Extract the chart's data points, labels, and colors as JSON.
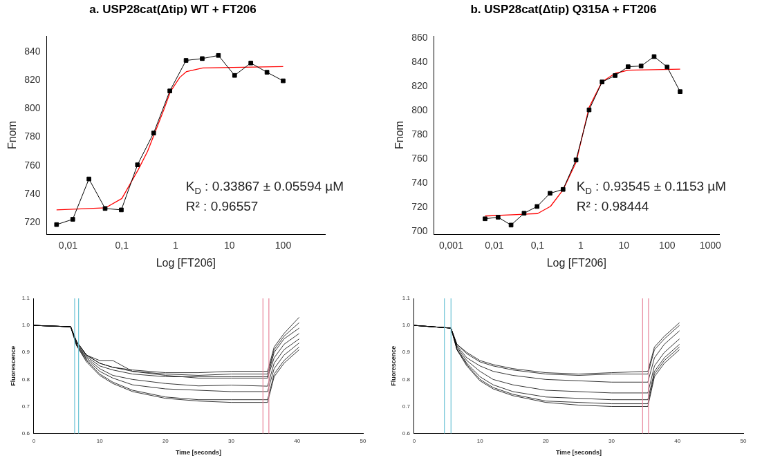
{
  "chart_data": [
    {
      "type": "line",
      "title": "a. USP28cat(Δtip) WT + FT206",
      "xlabel": "Log [FT206]",
      "ylabel": "Fnom",
      "log": "x",
      "marker": "square",
      "line_style": "solid",
      "legend": false,
      "grid": false,
      "xlim": [
        0.004,
        600
      ],
      "xticks": [
        {
          "value": 0.01,
          "label": "0,01"
        },
        {
          "value": 0.1,
          "label": "0,1"
        },
        1,
        10,
        100
      ],
      "ylim": [
        712,
        851
      ],
      "yticks": [
        720,
        740,
        760,
        780,
        800,
        820,
        840
      ],
      "annotations": [
        "K$_{D}$ : 0.33867 ± 0.05594 µM",
        "R² : 0.96557"
      ],
      "series": [
        {
          "color": "#000000",
          "x": [
            0.0061,
            0.0122,
            0.0244,
            0.0488,
            0.0977,
            0.195,
            0.39,
            0.78,
            1.5625,
            3.125,
            6.25,
            12.5,
            25,
            50,
            100
          ],
          "values": [
            718.7,
            722.4,
            750.7,
            730,
            729,
            760.6,
            782.9,
            812.4,
            833.8,
            835.1,
            837.3,
            823.3,
            832,
            825.5,
            819.5
          ]
        },
        {
          "color": "#ff0000",
          "marker": "none",
          "x": [
            0.0061,
            0.05,
            0.1,
            0.2,
            0.3,
            0.4,
            0.6,
            0.8,
            1.2,
            1.6,
            3.2,
            100
          ],
          "values": [
            729,
            730.5,
            737,
            757,
            770,
            782,
            799,
            812,
            822,
            826,
            828.5,
            829.5
          ]
        }
      ]
    },
    {
      "type": "line",
      "title": "b. USP28cat(Δtip) Q315A + FT206",
      "xlabel": "Log [FT206]",
      "ylabel": "Fnom",
      "log": "x",
      "marker": "square",
      "line_style": "solid",
      "legend": false,
      "grid": false,
      "xlim": [
        0.0004,
        1600
      ],
      "xticks": [
        {
          "value": 0.001,
          "label": "0,001"
        },
        {
          "value": 0.01,
          "label": "0,01"
        },
        {
          "value": 0.1,
          "label": "0,1"
        },
        1,
        10,
        100,
        1000
      ],
      "ylim": [
        698,
        862
      ],
      "yticks": [
        700,
        720,
        740,
        760,
        780,
        800,
        820,
        840,
        860
      ],
      "annotations": [
        "K$_{D}$ : 0.93545 ± 0.1153 µM",
        "R² : 0.98444"
      ],
      "series": [
        {
          "color": "#000000",
          "x": [
            0.0061,
            0.0122,
            0.0244,
            0.0488,
            0.0977,
            0.195,
            0.39,
            0.78,
            1.5625,
            3.125,
            6.25,
            12.5,
            25,
            50,
            100,
            200
          ],
          "values": [
            710.7,
            712,
            705.5,
            715.3,
            720.9,
            731.8,
            735,
            759.4,
            800.8,
            823.9,
            829.2,
            836.5,
            837.1,
            844.9,
            836.3,
            815.9
          ]
        },
        {
          "color": "#ff0000",
          "marker": "none",
          "x": [
            0.0061,
            0.1,
            0.2,
            0.39,
            0.78,
            1.56,
            3.1,
            6.25,
            12.5,
            200
          ],
          "values": [
            713,
            715,
            721,
            734.7,
            757.4,
            802.8,
            824,
            831,
            833.6,
            834.5
          ]
        }
      ]
    },
    {
      "type": "line",
      "xlabel": "Time [seconds]",
      "ylabel": "Fluorescence",
      "marker": "none",
      "line_style": "solid",
      "legend": false,
      "grid": false,
      "x": [
        0,
        5.6,
        6.5,
        8,
        10,
        12,
        15,
        20,
        25,
        30,
        35.5,
        36.5,
        38,
        40.3
      ],
      "xlim": [
        0,
        50
      ],
      "xticks": [
        0,
        10,
        20,
        30,
        40,
        50
      ],
      "ylim": [
        0.6,
        1.1
      ],
      "yticks": [
        0.6,
        0.7,
        0.8,
        0.9,
        {
          "value": 1,
          "label": "1.0"
        },
        1.1
      ],
      "ref_lines": [
        {
          "axis": "x",
          "value": 6.2,
          "color": "#6cc3d5"
        },
        {
          "axis": "x",
          "value": 6.8,
          "color": "#6cc3d5"
        },
        {
          "axis": "x",
          "value": 34.8,
          "color": "#e8879c"
        },
        {
          "axis": "x",
          "value": 35.7,
          "color": "#e8879c"
        }
      ],
      "series": [
        {
          "color": "#000000",
          "values": [
            1,
            0.995,
            0.94,
            0.89,
            0.86,
            0.845,
            0.835,
            0.825,
            0.825,
            0.83,
            0.83,
            0.92,
            0.97,
            1.03
          ]
        },
        {
          "color": "#000000",
          "values": [
            1,
            0.995,
            0.94,
            0.89,
            0.86,
            0.845,
            0.83,
            0.82,
            0.815,
            0.82,
            0.82,
            0.91,
            0.96,
            1.01
          ]
        },
        {
          "color": "#000000",
          "values": [
            1,
            0.995,
            0.935,
            0.885,
            0.85,
            0.835,
            0.82,
            0.81,
            0.81,
            0.81,
            0.81,
            0.9,
            0.95,
            0.99
          ]
        },
        {
          "color": "#000000",
          "values": [
            1,
            0.995,
            0.94,
            0.89,
            0.87,
            0.87,
            0.83,
            0.815,
            0.805,
            0.805,
            0.805,
            0.88,
            0.93,
            0.97
          ]
        },
        {
          "color": "#000000",
          "values": [
            1,
            0.995,
            0.93,
            0.88,
            0.84,
            0.815,
            0.8,
            0.785,
            0.776,
            0.779,
            0.775,
            0.86,
            0.91,
            0.95
          ]
        },
        {
          "color": "#000000",
          "values": [
            1,
            0.995,
            0.93,
            0.875,
            0.83,
            0.805,
            0.78,
            0.765,
            0.76,
            0.755,
            0.755,
            0.84,
            0.89,
            0.935
          ]
        },
        {
          "color": "#000000",
          "values": [
            1,
            0.995,
            0.925,
            0.87,
            0.82,
            0.79,
            0.76,
            0.735,
            0.725,
            0.725,
            0.725,
            0.82,
            0.87,
            0.92
          ]
        },
        {
          "color": "#000000",
          "values": [
            1,
            0.995,
            0.925,
            0.865,
            0.815,
            0.785,
            0.755,
            0.73,
            0.72,
            0.715,
            0.715,
            0.81,
            0.86,
            0.91
          ]
        }
      ]
    },
    {
      "type": "line",
      "xlabel": "Time [seconds]",
      "ylabel": "Fluorescence",
      "marker": "none",
      "line_style": "solid",
      "legend": false,
      "grid": false,
      "x": [
        0,
        5.6,
        6.5,
        8,
        10,
        12,
        15,
        20,
        25,
        30,
        35.5,
        36.5,
        38,
        40.3
      ],
      "xlim": [
        0,
        50
      ],
      "xticks": [
        0,
        10,
        20,
        30,
        40,
        50
      ],
      "ylim": [
        0.6,
        1.1
      ],
      "yticks": [
        0.6,
        0.7,
        0.8,
        0.9,
        {
          "value": 1,
          "label": "1.0"
        },
        1.1
      ],
      "ref_lines": [
        {
          "axis": "x",
          "value": 4.6,
          "color": "#6cc3d5"
        },
        {
          "axis": "x",
          "value": 5.6,
          "color": "#6cc3d5"
        },
        {
          "axis": "x",
          "value": 34.7,
          "color": "#e8879c"
        },
        {
          "axis": "x",
          "value": 35.6,
          "color": "#e8879c"
        }
      ],
      "series": [
        {
          "color": "#000000",
          "values": [
            1,
            0.99,
            0.93,
            0.9,
            0.87,
            0.855,
            0.84,
            0.825,
            0.82,
            0.825,
            0.83,
            0.92,
            0.96,
            1.01
          ]
        },
        {
          "color": "#000000",
          "values": [
            1,
            0.99,
            0.93,
            0.895,
            0.865,
            0.85,
            0.835,
            0.82,
            0.815,
            0.82,
            0.82,
            0.91,
            0.95,
            1.0
          ]
        },
        {
          "color": "#000000",
          "values": [
            1,
            0.99,
            0.925,
            0.88,
            0.85,
            0.83,
            0.815,
            0.8,
            0.795,
            0.79,
            0.79,
            0.88,
            0.93,
            0.98
          ]
        },
        {
          "color": "#000000",
          "values": [
            1,
            0.99,
            0.92,
            0.87,
            0.83,
            0.8,
            0.78,
            0.76,
            0.755,
            0.75,
            0.75,
            0.85,
            0.9,
            0.95
          ]
        },
        {
          "color": "#000000",
          "values": [
            1,
            0.99,
            0.915,
            0.86,
            0.81,
            0.78,
            0.755,
            0.735,
            0.73,
            0.725,
            0.725,
            0.83,
            0.88,
            0.93
          ]
        },
        {
          "color": "#000000",
          "values": [
            1,
            0.99,
            0.91,
            0.855,
            0.8,
            0.77,
            0.745,
            0.72,
            0.715,
            0.71,
            0.71,
            0.82,
            0.87,
            0.92
          ]
        },
        {
          "color": "#000000",
          "values": [
            1,
            0.99,
            0.91,
            0.85,
            0.795,
            0.765,
            0.74,
            0.715,
            0.705,
            0.7,
            0.7,
            0.81,
            0.86,
            0.91
          ]
        }
      ]
    }
  ]
}
